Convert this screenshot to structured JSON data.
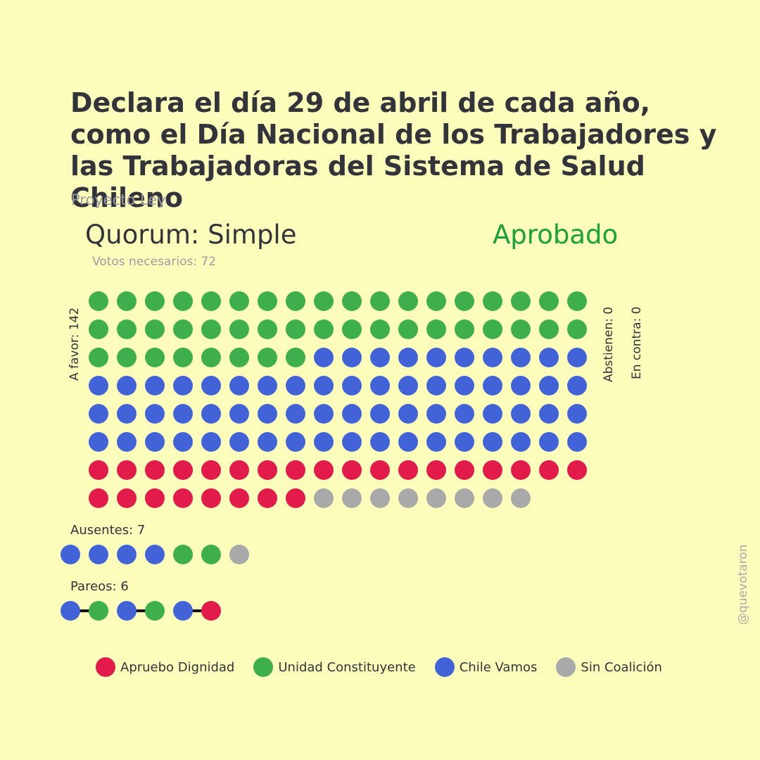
{
  "title": "Declara el día 29 de abril de cada año, como el Día Nacional de los Trabajadores y las Trabajadoras del Sistema de Salud Chileno",
  "subtitle": "Proyecto Ley",
  "quorum": "Quorum: Simple",
  "result": "Aprobado",
  "votes_needed": "Votos necesarios: 72",
  "labels": {
    "favor": "A favor: 142",
    "abstain": "Abstienen: 0",
    "against": "En contra: 0",
    "absent": "Ausentes: 7",
    "pairs": "Pareos: 6"
  },
  "credit": "@quevotaron",
  "colors": {
    "background": "#fdfdbb",
    "result": "#1aa23a",
    "apruebo_dignidad": "#e31b4b",
    "unidad_constituyente": "#3daf4c",
    "chile_vamos": "#4263d8",
    "sin_coalicion": "#a9a9a9"
  },
  "chart_data": {
    "type": "waffle",
    "total_members": 155,
    "votes": {
      "favor": 142,
      "abstain": 0,
      "against": 0,
      "absent": 7,
      "pairs": 6
    },
    "favor_by_coalition": [
      {
        "name": "Unidad Constituyente",
        "color": "#3daf4c",
        "count": 44
      },
      {
        "name": "Chile Vamos",
        "color": "#4263d8",
        "count": 64
      },
      {
        "name": "Apruebo Dignidad",
        "color": "#e31b4b",
        "count": 26
      },
      {
        "name": "Sin Coalición",
        "color": "#a9a9a9",
        "count": 8
      }
    ],
    "favor_columns": 18,
    "absent_members": [
      "Chile Vamos",
      "Chile Vamos",
      "Chile Vamos",
      "Chile Vamos",
      "Unidad Constituyente",
      "Unidad Constituyente",
      "Sin Coalición"
    ],
    "pairs": [
      [
        "Chile Vamos",
        "Unidad Constituyente"
      ],
      [
        "Chile Vamos",
        "Unidad Constituyente"
      ],
      [
        "Chile Vamos",
        "Apruebo Dignidad"
      ]
    ],
    "legend": [
      {
        "name": "Apruebo Dignidad",
        "color": "#e31b4b"
      },
      {
        "name": "Unidad Constituyente",
        "color": "#3daf4c"
      },
      {
        "name": "Chile Vamos",
        "color": "#4263d8"
      },
      {
        "name": "Sin Coalición",
        "color": "#a9a9a9"
      }
    ]
  }
}
